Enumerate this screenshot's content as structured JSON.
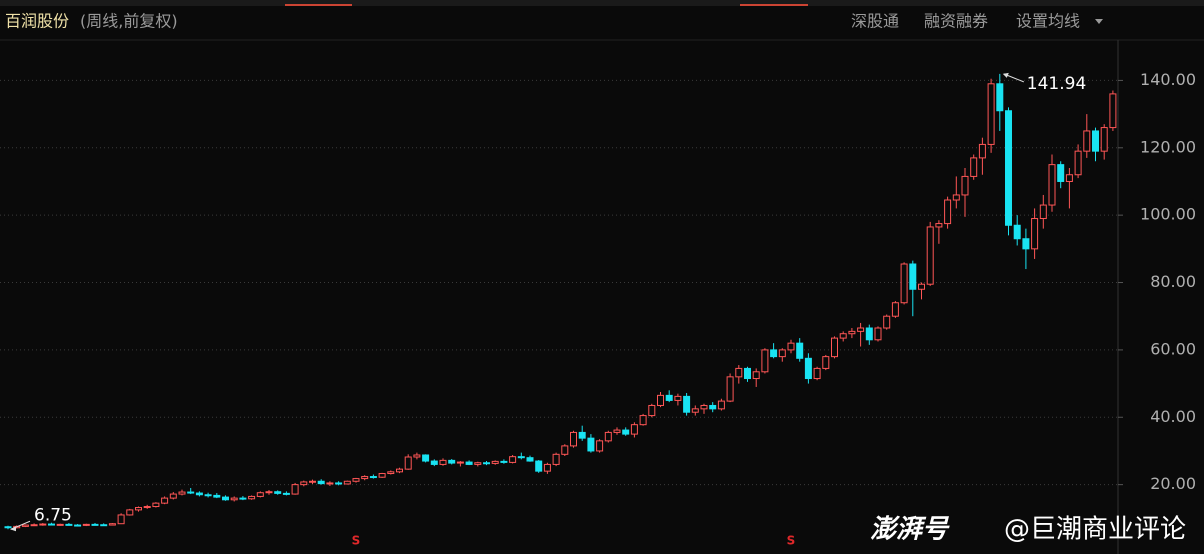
{
  "chart_data": {
    "type": "candlestick",
    "title": "百润股份",
    "subtitle": "(周线,前复权)",
    "buttons": [
      "深股通",
      "融资融券",
      "设置均线"
    ],
    "watermark": [
      "澎湃号",
      "@巨潮商业评论"
    ],
    "up_color": "#ff5656",
    "down_color": "#19e3f2",
    "ylim": [
      0,
      152
    ],
    "yticks": [
      {
        "value": 20,
        "label": "20.00"
      },
      {
        "value": 40,
        "label": "40.00"
      },
      {
        "value": 60,
        "label": "60.00"
      },
      {
        "value": 80,
        "label": "80.00"
      },
      {
        "value": 100,
        "label": "100.00"
      },
      {
        "value": 120,
        "label": "120.00"
      },
      {
        "value": 140,
        "label": "140.00"
      }
    ],
    "grid": true,
    "max_price": 141.94,
    "min_price": 6.75,
    "signals": [
      {
        "label": "S",
        "index": 40
      },
      {
        "label": "S",
        "index": 90
      }
    ],
    "candles": [
      [
        7.5,
        7.8,
        6.75,
        7.2
      ],
      [
        7.2,
        7.9,
        7.0,
        7.6
      ],
      [
        7.6,
        8.2,
        7.4,
        8.0
      ],
      [
        8.0,
        8.5,
        7.7,
        8.1
      ],
      [
        8.1,
        8.6,
        7.8,
        8.3
      ],
      [
        8.3,
        8.7,
        7.9,
        8.0
      ],
      [
        8.0,
        8.4,
        7.8,
        8.2
      ],
      [
        8.2,
        8.6,
        7.9,
        8.0
      ],
      [
        8.0,
        8.3,
        7.7,
        7.9
      ],
      [
        7.9,
        8.4,
        7.7,
        8.2
      ],
      [
        8.2,
        8.6,
        8.0,
        8.1
      ],
      [
        8.1,
        8.5,
        7.8,
        8.0
      ],
      [
        8.0,
        8.6,
        7.9,
        8.4
      ],
      [
        8.4,
        11.5,
        8.3,
        11.0
      ],
      [
        11.0,
        12.8,
        10.8,
        12.5
      ],
      [
        12.5,
        13.5,
        12.0,
        13.2
      ],
      [
        13.2,
        14.0,
        12.8,
        13.5
      ],
      [
        13.5,
        14.8,
        13.2,
        14.5
      ],
      [
        14.5,
        16.5,
        14.2,
        16.0
      ],
      [
        16.0,
        17.8,
        15.6,
        17.2
      ],
      [
        17.2,
        18.5,
        16.8,
        17.8
      ],
      [
        17.8,
        19.0,
        17.2,
        17.5
      ],
      [
        17.5,
        18.0,
        16.5,
        17.0
      ],
      [
        17.0,
        17.6,
        16.2,
        16.8
      ],
      [
        16.8,
        17.5,
        16.0,
        16.3
      ],
      [
        16.3,
        16.8,
        15.2,
        15.5
      ],
      [
        15.5,
        16.5,
        15.0,
        16.0
      ],
      [
        16.0,
        16.6,
        15.4,
        15.8
      ],
      [
        15.8,
        16.8,
        15.5,
        16.5
      ],
      [
        16.5,
        18.0,
        16.2,
        17.6
      ],
      [
        17.6,
        18.4,
        17.0,
        17.9
      ],
      [
        17.9,
        18.3,
        17.0,
        17.4
      ],
      [
        17.4,
        18.0,
        16.8,
        17.2
      ],
      [
        17.2,
        20.5,
        17.0,
        20.0
      ],
      [
        20.0,
        21.2,
        19.5,
        20.8
      ],
      [
        20.8,
        21.5,
        20.2,
        21.0
      ],
      [
        21.0,
        21.6,
        20.0,
        20.3
      ],
      [
        20.3,
        21.0,
        19.6,
        20.5
      ],
      [
        20.5,
        21.0,
        19.8,
        20.2
      ],
      [
        20.2,
        21.2,
        20.0,
        21.0
      ],
      [
        21.0,
        22.0,
        20.6,
        21.8
      ],
      [
        21.8,
        22.8,
        21.3,
        22.4
      ],
      [
        22.4,
        23.0,
        21.8,
        22.2
      ],
      [
        22.2,
        23.5,
        22.0,
        23.3
      ],
      [
        23.3,
        24.2,
        23.0,
        23.8
      ],
      [
        23.8,
        25.0,
        23.4,
        24.6
      ],
      [
        24.6,
        29.0,
        24.4,
        28.2
      ],
      [
        28.2,
        29.5,
        27.5,
        28.8
      ],
      [
        28.8,
        29.0,
        26.6,
        27.0
      ],
      [
        27.0,
        27.5,
        25.5,
        26.0
      ],
      [
        26.0,
        27.8,
        25.6,
        27.2
      ],
      [
        27.2,
        27.6,
        26.0,
        26.4
      ],
      [
        26.4,
        27.0,
        25.4,
        26.7
      ],
      [
        26.7,
        27.2,
        25.8,
        26.0
      ],
      [
        26.0,
        26.8,
        25.4,
        26.5
      ],
      [
        26.5,
        27.0,
        25.8,
        26.3
      ],
      [
        26.3,
        27.2,
        25.9,
        26.9
      ],
      [
        26.9,
        27.5,
        26.2,
        26.6
      ],
      [
        26.6,
        28.8,
        26.3,
        28.3
      ],
      [
        28.3,
        29.5,
        27.5,
        28.0
      ],
      [
        28.0,
        28.6,
        26.8,
        27.0
      ],
      [
        27.0,
        27.3,
        23.5,
        24.0
      ],
      [
        24.0,
        26.5,
        23.2,
        26.0
      ],
      [
        26.0,
        29.5,
        25.5,
        29.0
      ],
      [
        29.0,
        32.0,
        28.5,
        31.5
      ],
      [
        31.5,
        36.0,
        31.0,
        35.5
      ],
      [
        35.5,
        37.5,
        33.0,
        33.8
      ],
      [
        33.8,
        35.0,
        29.5,
        30.0
      ],
      [
        30.0,
        33.5,
        29.5,
        33.0
      ],
      [
        33.0,
        36.0,
        32.5,
        35.5
      ],
      [
        35.5,
        37.0,
        34.8,
        36.2
      ],
      [
        36.2,
        37.0,
        34.5,
        35.0
      ],
      [
        35.0,
        38.5,
        34.0,
        37.8
      ],
      [
        37.8,
        41.0,
        37.5,
        40.5
      ],
      [
        40.5,
        44.0,
        40.0,
        43.5
      ],
      [
        43.5,
        47.5,
        43.0,
        46.5
      ],
      [
        46.5,
        48.0,
        44.5,
        45.0
      ],
      [
        45.0,
        47.0,
        43.5,
        46.2
      ],
      [
        46.2,
        47.2,
        40.5,
        41.5
      ],
      [
        41.5,
        43.5,
        40.5,
        42.5
      ],
      [
        42.5,
        44.0,
        41.0,
        43.5
      ],
      [
        43.5,
        44.5,
        41.5,
        42.5
      ],
      [
        42.5,
        45.5,
        42.0,
        44.8
      ],
      [
        44.8,
        53.0,
        44.5,
        52.0
      ],
      [
        52.0,
        55.5,
        50.0,
        54.5
      ],
      [
        54.5,
        55.0,
        50.5,
        51.5
      ],
      [
        51.5,
        54.5,
        49.0,
        53.5
      ],
      [
        53.5,
        60.5,
        53.0,
        60.0
      ],
      [
        60.0,
        62.0,
        57.5,
        58.0
      ],
      [
        58.0,
        60.5,
        56.5,
        60.0
      ],
      [
        60.0,
        63.0,
        59.0,
        62.0
      ],
      [
        62.0,
        63.5,
        56.5,
        57.5
      ],
      [
        57.5,
        59.0,
        50.0,
        51.5
      ],
      [
        51.5,
        55.0,
        51.0,
        54.5
      ],
      [
        54.5,
        58.5,
        54.0,
        58.0
      ],
      [
        58.0,
        64.0,
        57.5,
        63.5
      ],
      [
        63.5,
        65.5,
        62.5,
        64.8
      ],
      [
        64.8,
        66.5,
        63.5,
        65.5
      ],
      [
        65.5,
        68.0,
        61.0,
        66.5
      ],
      [
        66.5,
        67.5,
        61.5,
        63.0
      ],
      [
        63.0,
        67.0,
        62.5,
        66.5
      ],
      [
        66.5,
        70.5,
        66.0,
        70.0
      ],
      [
        70.0,
        74.5,
        69.5,
        74.0
      ],
      [
        74.0,
        86.0,
        73.5,
        85.5
      ],
      [
        85.5,
        86.5,
        70.0,
        78.0
      ],
      [
        78.0,
        80.0,
        75.0,
        79.5
      ],
      [
        79.5,
        98.0,
        79.0,
        96.5
      ],
      [
        96.5,
        98.5,
        91.5,
        97.5
      ],
      [
        97.5,
        105.5,
        96.0,
        104.5
      ],
      [
        104.5,
        111.5,
        102.0,
        106.0
      ],
      [
        106.0,
        114.0,
        99.5,
        111.5
      ],
      [
        111.5,
        118.0,
        110.5,
        117.0
      ],
      [
        117.0,
        123.0,
        112.0,
        121.0
      ],
      [
        121.0,
        140.5,
        118.5,
        139.0
      ],
      [
        139.0,
        141.94,
        125.0,
        131.0
      ],
      [
        131.0,
        132.0,
        94.0,
        97.0
      ],
      [
        97.0,
        100.0,
        91.0,
        93.0
      ],
      [
        93.0,
        96.0,
        84.0,
        90.0
      ],
      [
        90.0,
        102.0,
        87.0,
        99.0
      ],
      [
        99.0,
        106.0,
        96.0,
        103.0
      ],
      [
        103.0,
        118.0,
        101.0,
        115.0
      ],
      [
        115.0,
        116.0,
        108.0,
        110.0
      ],
      [
        110.0,
        114.0,
        102.0,
        112.0
      ],
      [
        112.0,
        121.0,
        111.0,
        119.0
      ],
      [
        119.0,
        130.0,
        117.0,
        125.0
      ],
      [
        125.0,
        126.0,
        116.0,
        119.0
      ],
      [
        119.0,
        127.0,
        116.5,
        126.0
      ],
      [
        126.0,
        137.0,
        125.0,
        136.0
      ]
    ]
  }
}
